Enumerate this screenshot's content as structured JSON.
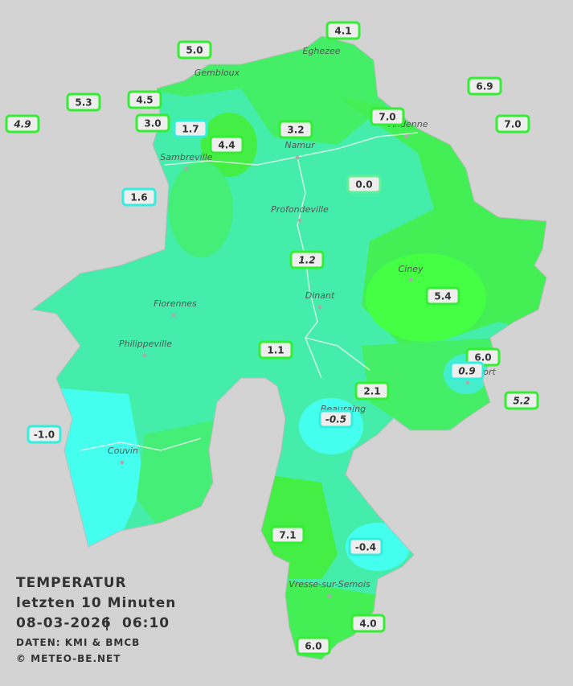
{
  "legend": {
    "title": "TEMPERATUR",
    "period": "letzten 10 Minuten",
    "date": "08-03-2026",
    "separator": "|",
    "time": "06:10",
    "source": "DATEN: KMI & BMCB",
    "copyright": "© METEO-BE.NET"
  },
  "towns": [
    "Eghezee",
    "Gembloux",
    "Andenne",
    "Namur",
    "Sambreville",
    "Profondeville",
    "Ciney",
    "Dinant",
    "Florennes",
    "Philippeville",
    "Rochefort",
    "Beauraing",
    "Couvin",
    "Vresse-sur-Semois"
  ],
  "stations": [
    "4.1",
    "5.0",
    "6.9",
    "5.3",
    "4.5",
    "7.0",
    "7.0",
    "4.9",
    "3.0",
    "1.7",
    "3.2",
    "4.4",
    "0.0",
    "1.6",
    "1.2",
    "5.4",
    "1.1",
    "6.0",
    "0.9",
    "2.1",
    "5.2",
    "-0.5",
    "-1.0",
    "7.1",
    "-0.4",
    "4.0",
    "6.0"
  ]
}
